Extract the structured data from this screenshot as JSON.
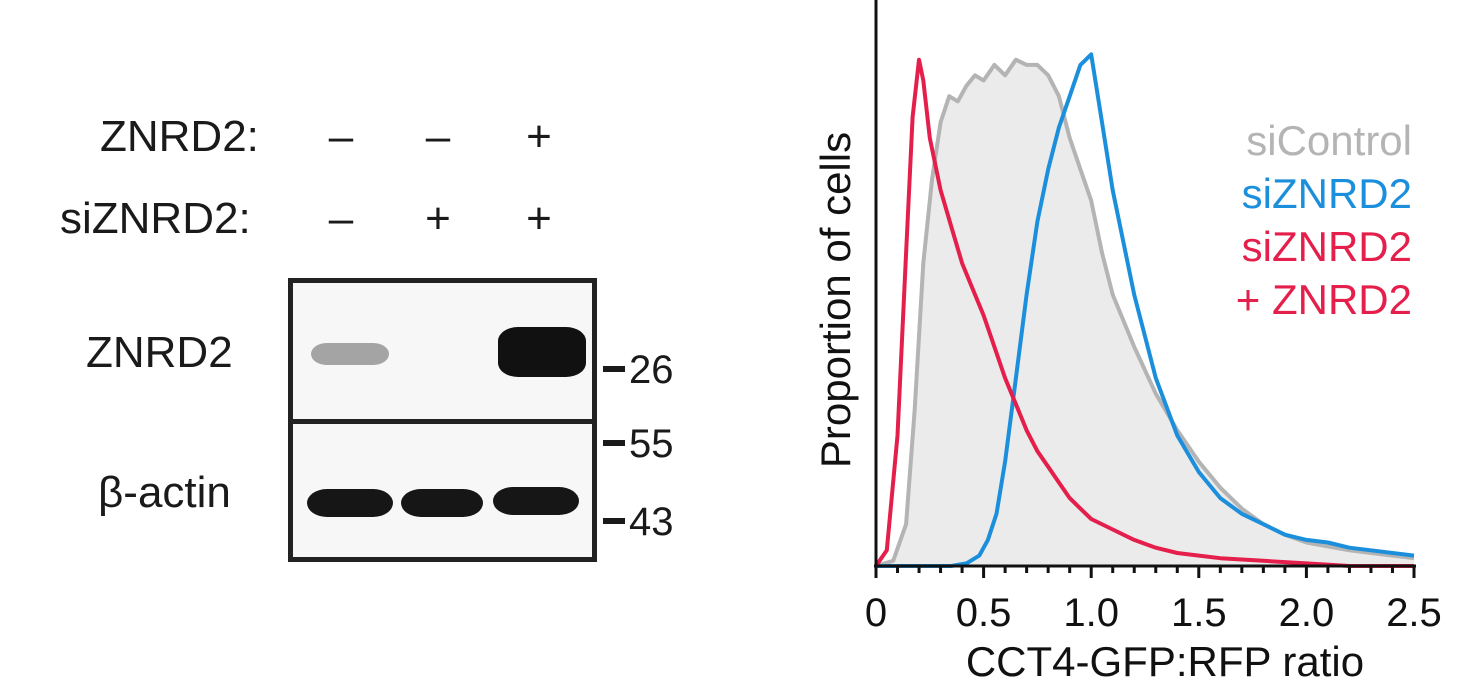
{
  "western_blot": {
    "conditions": [
      {
        "label": "ZNRD2:",
        "lanes": [
          "–",
          "–",
          "+"
        ]
      },
      {
        "label": "siZNRD2:",
        "lanes": [
          "–",
          "+",
          "+"
        ]
      }
    ],
    "rows": [
      {
        "label": "ZNRD2",
        "band_intensity": [
          0.35,
          0.0,
          1.0
        ]
      },
      {
        "label": "β-actin",
        "band_intensity": [
          0.95,
          0.95,
          0.95
        ]
      }
    ],
    "mw_markers": [
      "26",
      "55",
      "43"
    ]
  },
  "chart_data": {
    "type": "line",
    "xlabel": "CCT4-GFP:RFP ratio",
    "ylabel": "Proportion of cells",
    "xlim": [
      0,
      2.5
    ],
    "ylim": [
      0,
      1.0
    ],
    "xticks": [
      "0",
      "0.5",
      "1.0",
      "1.5",
      "2.0",
      "2.5"
    ],
    "legend_position": "right",
    "series": [
      {
        "name": "siControl",
        "color": "#b4b4b4",
        "fill": "#ebebeb",
        "x": [
          0,
          0.08,
          0.14,
          0.18,
          0.22,
          0.26,
          0.3,
          0.34,
          0.38,
          0.42,
          0.46,
          0.5,
          0.55,
          0.6,
          0.65,
          0.7,
          0.75,
          0.8,
          0.85,
          0.9,
          0.95,
          1.0,
          1.05,
          1.1,
          1.2,
          1.3,
          1.4,
          1.5,
          1.6,
          1.7,
          1.8,
          1.9,
          2.0,
          2.2,
          2.4,
          2.5
        ],
        "y": [
          0.0,
          0.01,
          0.08,
          0.3,
          0.58,
          0.74,
          0.85,
          0.9,
          0.89,
          0.92,
          0.94,
          0.93,
          0.96,
          0.94,
          0.97,
          0.96,
          0.96,
          0.94,
          0.9,
          0.82,
          0.76,
          0.7,
          0.6,
          0.52,
          0.42,
          0.33,
          0.26,
          0.2,
          0.15,
          0.11,
          0.08,
          0.06,
          0.045,
          0.03,
          0.02,
          0.015
        ]
      },
      {
        "name": "siZNRD2",
        "color": "#1c8fdc",
        "fill": "none",
        "x": [
          0,
          0.2,
          0.35,
          0.42,
          0.48,
          0.52,
          0.56,
          0.6,
          0.65,
          0.7,
          0.75,
          0.8,
          0.85,
          0.9,
          0.95,
          1.0,
          1.05,
          1.1,
          1.2,
          1.3,
          1.4,
          1.5,
          1.6,
          1.7,
          1.8,
          1.9,
          2.0,
          2.1,
          2.2,
          2.3,
          2.4,
          2.5
        ],
        "y": [
          0.0,
          0.0,
          0.0,
          0.005,
          0.02,
          0.05,
          0.1,
          0.2,
          0.36,
          0.52,
          0.66,
          0.76,
          0.84,
          0.9,
          0.96,
          0.98,
          0.85,
          0.72,
          0.52,
          0.36,
          0.25,
          0.18,
          0.13,
          0.1,
          0.08,
          0.06,
          0.05,
          0.045,
          0.035,
          0.03,
          0.025,
          0.02
        ]
      },
      {
        "name": "siZNRD2\n+ ZNRD2",
        "color": "#e51f4b",
        "fill": "none",
        "x": [
          0,
          0.05,
          0.1,
          0.14,
          0.17,
          0.2,
          0.22,
          0.25,
          0.3,
          0.35,
          0.4,
          0.45,
          0.5,
          0.55,
          0.6,
          0.65,
          0.7,
          0.75,
          0.8,
          0.85,
          0.9,
          0.95,
          1.0,
          1.1,
          1.2,
          1.3,
          1.4,
          1.5,
          1.6,
          1.8,
          2.0,
          2.2,
          2.5
        ],
        "y": [
          0.0,
          0.03,
          0.25,
          0.6,
          0.86,
          0.97,
          0.93,
          0.82,
          0.72,
          0.65,
          0.58,
          0.53,
          0.48,
          0.42,
          0.36,
          0.31,
          0.26,
          0.22,
          0.19,
          0.16,
          0.13,
          0.11,
          0.09,
          0.07,
          0.05,
          0.035,
          0.025,
          0.02,
          0.015,
          0.01,
          0.005,
          0.0,
          0.0
        ]
      }
    ]
  }
}
